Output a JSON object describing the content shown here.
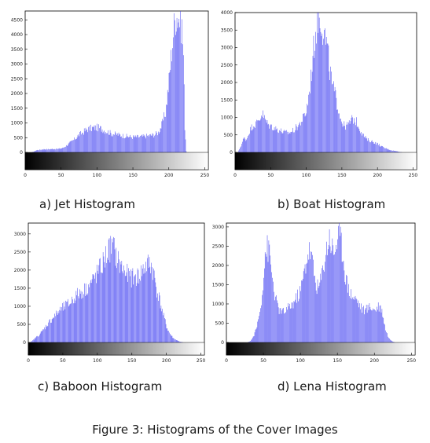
{
  "figure_caption": "Figure 3: Histograms of the Cover Images",
  "colors": {
    "bar": "#3b3bf0",
    "frame": "#000000",
    "background": "#ffffff"
  },
  "chart_data": [
    {
      "type": "bar",
      "caption": "a) Jet Histogram",
      "xlim": [
        0,
        255
      ],
      "ylim": [
        0,
        4800
      ],
      "xticks": [
        0,
        50,
        100,
        150,
        200,
        250
      ],
      "yticks": [
        0,
        500,
        1000,
        1500,
        2000,
        2500,
        3000,
        3500,
        4000,
        4500
      ],
      "grayscale_strip": true,
      "envelope": [
        [
          0,
          0
        ],
        [
          8,
          0
        ],
        [
          12,
          30
        ],
        [
          16,
          80
        ],
        [
          20,
          90
        ],
        [
          25,
          110
        ],
        [
          32,
          110
        ],
        [
          38,
          120
        ],
        [
          45,
          120
        ],
        [
          52,
          150
        ],
        [
          60,
          290
        ],
        [
          65,
          390
        ],
        [
          70,
          500
        ],
        [
          75,
          620
        ],
        [
          80,
          700
        ],
        [
          85,
          800
        ],
        [
          90,
          840
        ],
        [
          95,
          860
        ],
        [
          100,
          870
        ],
        [
          105,
          840
        ],
        [
          110,
          780
        ],
        [
          115,
          720
        ],
        [
          120,
          660
        ],
        [
          125,
          640
        ],
        [
          130,
          620
        ],
        [
          135,
          590
        ],
        [
          140,
          570
        ],
        [
          145,
          550
        ],
        [
          150,
          540
        ],
        [
          155,
          540
        ],
        [
          160,
          550
        ],
        [
          165,
          560
        ],
        [
          170,
          580
        ],
        [
          175,
          600
        ],
        [
          180,
          620
        ],
        [
          185,
          700
        ],
        [
          190,
          950
        ],
        [
          195,
          1400
        ],
        [
          200,
          2500
        ],
        [
          203,
          3300
        ],
        [
          206,
          4200
        ],
        [
          209,
          4800
        ],
        [
          212,
          4800
        ],
        [
          215,
          4700
        ],
        [
          218,
          4400
        ],
        [
          220,
          3400
        ],
        [
          222,
          900
        ],
        [
          224,
          50
        ],
        [
          225,
          0
        ],
        [
          255,
          0
        ]
      ]
    },
    {
      "type": "bar",
      "caption": "b) Boat Histogram",
      "xlim": [
        0,
        255
      ],
      "ylim": [
        0,
        4000
      ],
      "xticks": [
        0,
        50,
        100,
        150,
        200,
        250
      ],
      "yticks": [
        0,
        500,
        1000,
        1500,
        2000,
        2500,
        3000,
        3500,
        4000
      ],
      "grayscale_strip": true,
      "envelope": [
        [
          0,
          0
        ],
        [
          4,
          0
        ],
        [
          8,
          200
        ],
        [
          12,
          420
        ],
        [
          16,
          380
        ],
        [
          20,
          640
        ],
        [
          25,
          800
        ],
        [
          30,
          860
        ],
        [
          35,
          1020
        ],
        [
          38,
          1160
        ],
        [
          42,
          960
        ],
        [
          46,
          820
        ],
        [
          50,
          780
        ],
        [
          55,
          720
        ],
        [
          60,
          680
        ],
        [
          65,
          620
        ],
        [
          70,
          580
        ],
        [
          75,
          580
        ],
        [
          80,
          620
        ],
        [
          85,
          720
        ],
        [
          90,
          820
        ],
        [
          95,
          1000
        ],
        [
          100,
          1200
        ],
        [
          104,
          1800
        ],
        [
          108,
          2600
        ],
        [
          112,
          3400
        ],
        [
          116,
          4000
        ],
        [
          120,
          4000
        ],
        [
          124,
          3600
        ],
        [
          128,
          3200
        ],
        [
          132,
          2600
        ],
        [
          136,
          2000
        ],
        [
          140,
          1700
        ],
        [
          144,
          1400
        ],
        [
          148,
          1000
        ],
        [
          152,
          800
        ],
        [
          156,
          780
        ],
        [
          160,
          850
        ],
        [
          165,
          1000
        ],
        [
          170,
          900
        ],
        [
          175,
          700
        ],
        [
          180,
          500
        ],
        [
          185,
          380
        ],
        [
          190,
          340
        ],
        [
          195,
          300
        ],
        [
          200,
          250
        ],
        [
          205,
          180
        ],
        [
          210,
          130
        ],
        [
          215,
          90
        ],
        [
          220,
          60
        ],
        [
          225,
          40
        ],
        [
          230,
          20
        ],
        [
          235,
          0
        ],
        [
          255,
          0
        ]
      ]
    },
    {
      "type": "bar",
      "caption": "c) Baboon Histogram",
      "xlim": [
        0,
        255
      ],
      "ylim": [
        0,
        3300
      ],
      "xticks": [
        0,
        50,
        100,
        150,
        200,
        250
      ],
      "yticks": [
        0,
        500,
        1000,
        1500,
        2000,
        2500,
        3000
      ],
      "grayscale_strip": true,
      "envelope": [
        [
          0,
          0
        ],
        [
          3,
          0
        ],
        [
          5,
          40
        ],
        [
          10,
          130
        ],
        [
          15,
          210
        ],
        [
          20,
          320
        ],
        [
          25,
          460
        ],
        [
          30,
          580
        ],
        [
          35,
          700
        ],
        [
          40,
          800
        ],
        [
          45,
          900
        ],
        [
          50,
          990
        ],
        [
          55,
          1060
        ],
        [
          60,
          1120
        ],
        [
          65,
          1250
        ],
        [
          70,
          1350
        ],
        [
          75,
          1420
        ],
        [
          80,
          1480
        ],
        [
          85,
          1560
        ],
        [
          90,
          1680
        ],
        [
          95,
          1820
        ],
        [
          100,
          1980
        ],
        [
          105,
          2150
        ],
        [
          110,
          2350
        ],
        [
          115,
          2600
        ],
        [
          120,
          2720
        ],
        [
          123,
          2700
        ],
        [
          126,
          2500
        ],
        [
          130,
          2300
        ],
        [
          135,
          2150
        ],
        [
          140,
          2000
        ],
        [
          145,
          1900
        ],
        [
          150,
          1840
        ],
        [
          155,
          1850
        ],
        [
          160,
          1900
        ],
        [
          165,
          2050
        ],
        [
          170,
          2180
        ],
        [
          175,
          2250
        ],
        [
          178,
          2200
        ],
        [
          182,
          1900
        ],
        [
          186,
          1500
        ],
        [
          190,
          1200
        ],
        [
          195,
          800
        ],
        [
          200,
          450
        ],
        [
          205,
          240
        ],
        [
          210,
          120
        ],
        [
          215,
          60
        ],
        [
          220,
          20
        ],
        [
          225,
          0
        ],
        [
          255,
          0
        ]
      ]
    },
    {
      "type": "bar",
      "caption": "d) Lena Histogram",
      "xlim": [
        0,
        255
      ],
      "ylim": [
        0,
        3100
      ],
      "xticks": [
        0,
        50,
        100,
        150,
        200,
        250
      ],
      "yticks": [
        0,
        500,
        1000,
        1500,
        2000,
        2500,
        3000
      ],
      "grayscale_strip": true,
      "envelope": [
        [
          0,
          0
        ],
        [
          28,
          0
        ],
        [
          32,
          40
        ],
        [
          36,
          150
        ],
        [
          40,
          350
        ],
        [
          44,
          700
        ],
        [
          48,
          1300
        ],
        [
          50,
          1900
        ],
        [
          52,
          2400
        ],
        [
          55,
          2520
        ],
        [
          58,
          2400
        ],
        [
          61,
          1900
        ],
        [
          64,
          1400
        ],
        [
          67,
          1100
        ],
        [
          70,
          900
        ],
        [
          75,
          800
        ],
        [
          80,
          850
        ],
        [
          85,
          950
        ],
        [
          90,
          1050
        ],
        [
          95,
          1200
        ],
        [
          100,
          1400
        ],
        [
          104,
          1800
        ],
        [
          108,
          2200
        ],
        [
          111,
          2450
        ],
        [
          114,
          2400
        ],
        [
          117,
          2000
        ],
        [
          120,
          1600
        ],
        [
          124,
          1450
        ],
        [
          128,
          1700
        ],
        [
          132,
          2200
        ],
        [
          136,
          2600
        ],
        [
          139,
          2850
        ],
        [
          142,
          2600
        ],
        [
          145,
          2400
        ],
        [
          148,
          2650
        ],
        [
          151,
          2850
        ],
        [
          154,
          2750
        ],
        [
          157,
          2400
        ],
        [
          160,
          1900
        ],
        [
          164,
          1500
        ],
        [
          168,
          1300
        ],
        [
          172,
          1200
        ],
        [
          176,
          1150
        ],
        [
          180,
          1000
        ],
        [
          184,
          880
        ],
        [
          188,
          860
        ],
        [
          192,
          940
        ],
        [
          196,
          950
        ],
        [
          199,
          880
        ],
        [
          202,
          900
        ],
        [
          205,
          980
        ],
        [
          208,
          960
        ],
        [
          211,
          780
        ],
        [
          215,
          350
        ],
        [
          219,
          120
        ],
        [
          223,
          40
        ],
        [
          228,
          0
        ],
        [
          255,
          0
        ]
      ]
    }
  ]
}
